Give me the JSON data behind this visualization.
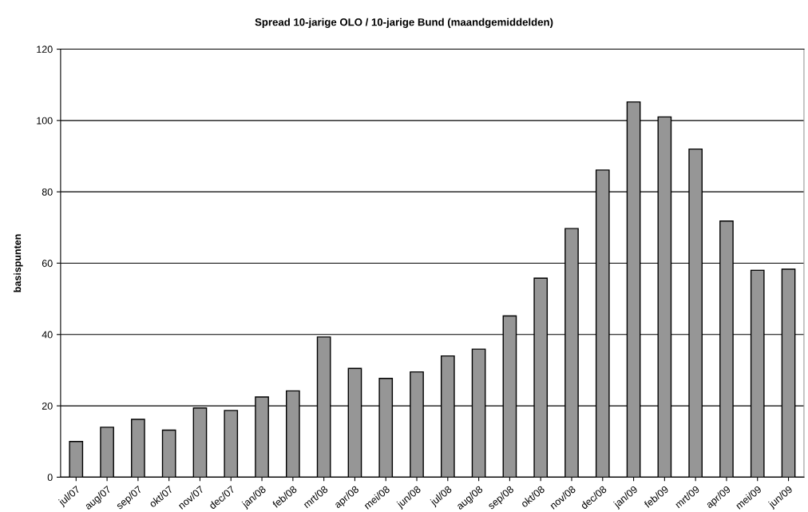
{
  "chart_data": {
    "type": "bar",
    "title": "Spread 10-jarige OLO / 10-jarige Bund (maandgemiddelden)",
    "ylabel": "basispunten",
    "categories": [
      "jul/07",
      "aug/07",
      "sep/07",
      "okt/07",
      "nov/07",
      "dec/07",
      "jan/08",
      "feb/08",
      "mrt/08",
      "apr/08",
      "mei/08",
      "jun/08",
      "jul/08",
      "aug/08",
      "sep/08",
      "okt/08",
      "nov/08",
      "dec/08",
      "jan/09",
      "feb/09",
      "mrt/09",
      "apr/09",
      "mei/09",
      "jun/09"
    ],
    "values": [
      10,
      14,
      16.2,
      13.2,
      19.4,
      18.7,
      22.5,
      24.2,
      39.3,
      30.5,
      27.7,
      29.5,
      34,
      35.9,
      45.2,
      55.8,
      69.7,
      86.1,
      105.2,
      101,
      92,
      71.8,
      58,
      58.3
    ],
    "color": "#969696",
    "ylim": [
      0,
      120
    ],
    "yticks": [
      0,
      20,
      40,
      60,
      80,
      100,
      120
    ],
    "grid": "y",
    "legend": false
  }
}
